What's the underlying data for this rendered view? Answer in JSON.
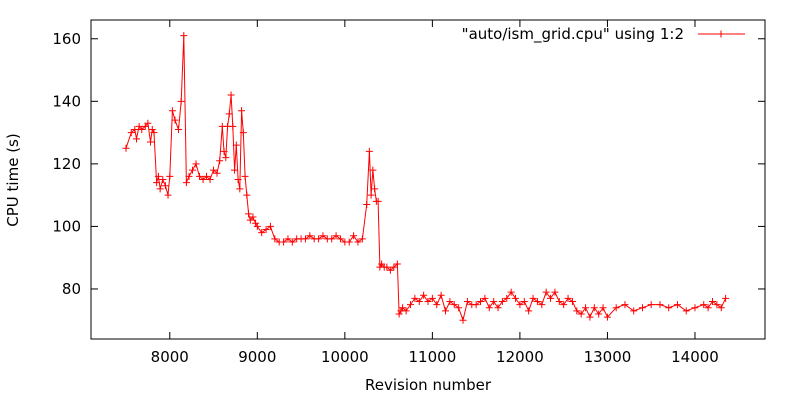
{
  "chart_data": {
    "type": "line",
    "title": "",
    "xlabel": "Revision number",
    "ylabel": "CPU time (s)",
    "xlim": [
      7100,
      14800
    ],
    "ylim": [
      64,
      166
    ],
    "xticks": [
      8000,
      9000,
      10000,
      11000,
      12000,
      13000,
      14000
    ],
    "yticks": [
      80,
      100,
      120,
      140,
      160
    ],
    "grid": false,
    "legend": "top-right",
    "marker": "plus",
    "series": [
      {
        "name": "\"auto/ism_grid.cpu\" using 1:2",
        "color": "#ff0000",
        "x": [
          7500,
          7560,
          7600,
          7620,
          7650,
          7680,
          7720,
          7750,
          7780,
          7800,
          7820,
          7850,
          7870,
          7890,
          7920,
          7950,
          7980,
          8000,
          8030,
          8060,
          8100,
          8130,
          8160,
          8190,
          8220,
          8260,
          8300,
          8340,
          8380,
          8420,
          8460,
          8500,
          8540,
          8570,
          8600,
          8620,
          8640,
          8660,
          8680,
          8700,
          8720,
          8740,
          8760,
          8780,
          8800,
          8820,
          8840,
          8860,
          8880,
          8900,
          8920,
          8950,
          8980,
          9000,
          9050,
          9100,
          9150,
          9200,
          9250,
          9300,
          9350,
          9400,
          9450,
          9500,
          9550,
          9600,
          9650,
          9700,
          9750,
          9800,
          9850,
          9900,
          9950,
          10000,
          10050,
          10100,
          10150,
          10200,
          10250,
          10280,
          10300,
          10320,
          10340,
          10360,
          10380,
          10400,
          10420,
          10450,
          10480,
          10520,
          10560,
          10600,
          10620,
          10640,
          10660,
          10700,
          10750,
          10800,
          10850,
          10900,
          10950,
          11000,
          11050,
          11100,
          11150,
          11200,
          11250,
          11300,
          11350,
          11400,
          11450,
          11500,
          11550,
          11600,
          11650,
          11700,
          11750,
          11800,
          11850,
          11900,
          11950,
          12000,
          12050,
          12100,
          12150,
          12200,
          12250,
          12300,
          12350,
          12400,
          12450,
          12500,
          12550,
          12600,
          12650,
          12700,
          12750,
          12800,
          12850,
          12900,
          12950,
          13000,
          13100,
          13200,
          13300,
          13400,
          13500,
          13600,
          13700,
          13800,
          13900,
          14000,
          14100,
          14150,
          14200,
          14250,
          14300,
          14350
        ],
        "y": [
          125,
          130,
          131,
          128,
          132,
          131,
          132,
          133,
          127,
          131,
          130,
          114,
          116,
          112,
          115,
          113,
          110,
          116,
          137,
          134,
          131,
          140,
          161,
          114,
          116,
          118,
          120,
          116,
          115,
          116,
          115,
          118,
          117,
          121,
          132,
          124,
          122,
          132,
          136,
          142,
          132,
          118,
          126,
          115,
          112,
          137,
          130,
          116,
          110,
          104,
          102,
          103,
          101,
          100,
          98,
          99,
          100,
          96,
          95,
          95,
          96,
          95,
          96,
          96,
          96,
          97,
          96,
          96,
          97,
          96,
          96,
          97,
          96,
          95,
          95,
          97,
          95,
          96,
          107,
          124,
          110,
          118,
          112,
          108,
          108,
          87,
          88,
          87,
          87,
          86,
          87,
          88,
          72,
          73,
          74,
          73,
          75,
          77,
          76,
          78,
          76,
          77,
          75,
          78,
          73,
          76,
          75,
          74,
          70,
          76,
          75,
          75,
          76,
          77,
          74,
          76,
          74,
          76,
          77,
          79,
          77,
          75,
          76,
          73,
          77,
          76,
          75,
          79,
          77,
          79,
          76,
          75,
          77,
          76,
          73,
          72,
          74,
          71,
          74,
          72,
          74,
          71,
          74,
          75,
          73,
          74,
          75,
          75,
          74,
          75,
          73,
          74,
          75,
          74,
          76,
          75,
          74,
          77
        ]
      }
    ]
  }
}
